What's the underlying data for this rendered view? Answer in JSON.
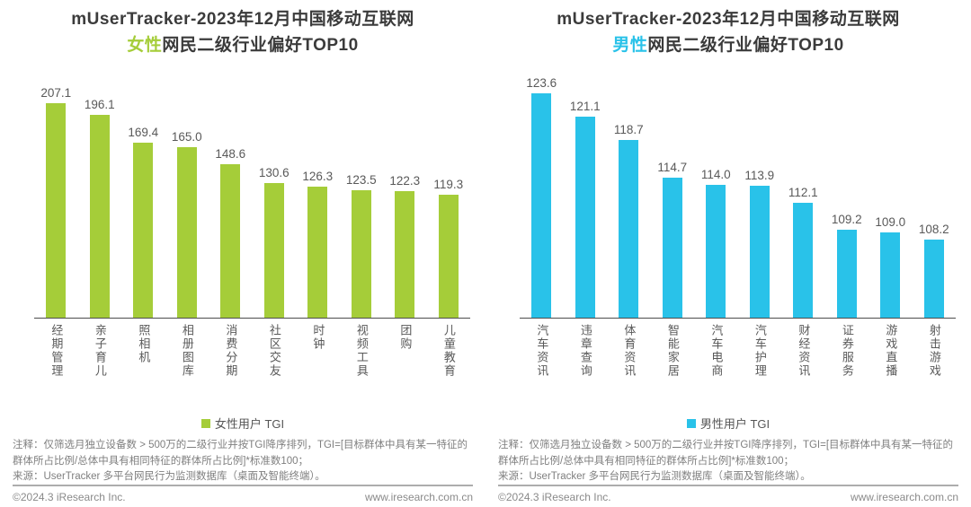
{
  "colors": {
    "female_accent": "#a5cd39",
    "male_accent": "#29c2e9",
    "title_text": "#3b3b3b",
    "label_text": "#595959",
    "note_text": "#7f7f7f",
    "axis_line": "#4d4d4d"
  },
  "chart_data": [
    {
      "type": "bar",
      "title": "mUserTracker-2023年12月中国移动互联网女性网民二级行业偏好TOP10",
      "categories": [
        "经期管理",
        "亲子育儿",
        "照相机",
        "相册图库",
        "消费分期",
        "社区交友",
        "时钟",
        "视频工具",
        "团购",
        "儿童教育"
      ],
      "values": [
        207.1,
        196.1,
        169.4,
        165.0,
        148.6,
        130.6,
        126.3,
        123.5,
        122.3,
        119.3
      ],
      "series_name": "女性用户 TGI",
      "bar_color": "#a5cd39",
      "xlabel": "",
      "ylabel": "",
      "ylim": [
        0,
        230
      ],
      "grid": false,
      "value_labels": true,
      "legend_position": "bottom"
    },
    {
      "type": "bar",
      "title": "mUserTracker-2023年12月中国移动互联网男性网民二级行业偏好TOP10",
      "categories": [
        "汽车资讯",
        "违章查询",
        "体育资讯",
        "智能家居",
        "汽车电商",
        "汽车护理",
        "财经资讯",
        "证券服务",
        "游戏直播",
        "射击游戏"
      ],
      "values": [
        123.6,
        121.1,
        118.7,
        114.7,
        114.0,
        113.9,
        112.1,
        109.2,
        109.0,
        108.2
      ],
      "series_name": "男性用户 TGI",
      "bar_color": "#29c2e9",
      "xlabel": "",
      "ylabel": "",
      "ylim": [
        100,
        125
      ],
      "grid": false,
      "value_labels": true,
      "legend_position": "bottom"
    }
  ],
  "panels": [
    {
      "title_line1": "mUserTracker-2023年12月中国移动互联网",
      "title_line2_highlight": "女性",
      "title_line2_rest": "网民二级行业偏好TOP10",
      "legend_label": "女性用户 TGI",
      "note_line1": "注释：仅筛选月独立设备数 > 500万的二级行业并按TGI降序排列，TGI=[目标群体中具有某一特征的群体所占比例/总体中具有相同特征的群体所占比例]*标准数100；",
      "note_line2": "来源：UserTracker 多平台网民行为监测数据库（桌面及智能终端）。",
      "footer_left": "©2024.3 iResearch Inc.",
      "footer_right": "www.iresearch.com.cn"
    },
    {
      "title_line1": "mUserTracker-2023年12月中国移动互联网",
      "title_line2_highlight": "男性",
      "title_line2_rest": "网民二级行业偏好TOP10",
      "legend_label": "男性用户 TGI",
      "note_line1": "注释：仅筛选月独立设备数 > 500万的二级行业并按TGI降序排列，TGI=[目标群体中具有某一特征的群体所占比例/总体中具有相同特征的群体所占比例]*标准数100；",
      "note_line2": "来源：UserTracker 多平台网民行为监测数据库（桌面及智能终端）。",
      "footer_left": "©2024.3 iResearch Inc.",
      "footer_right": "www.iresearch.com.cn"
    }
  ]
}
